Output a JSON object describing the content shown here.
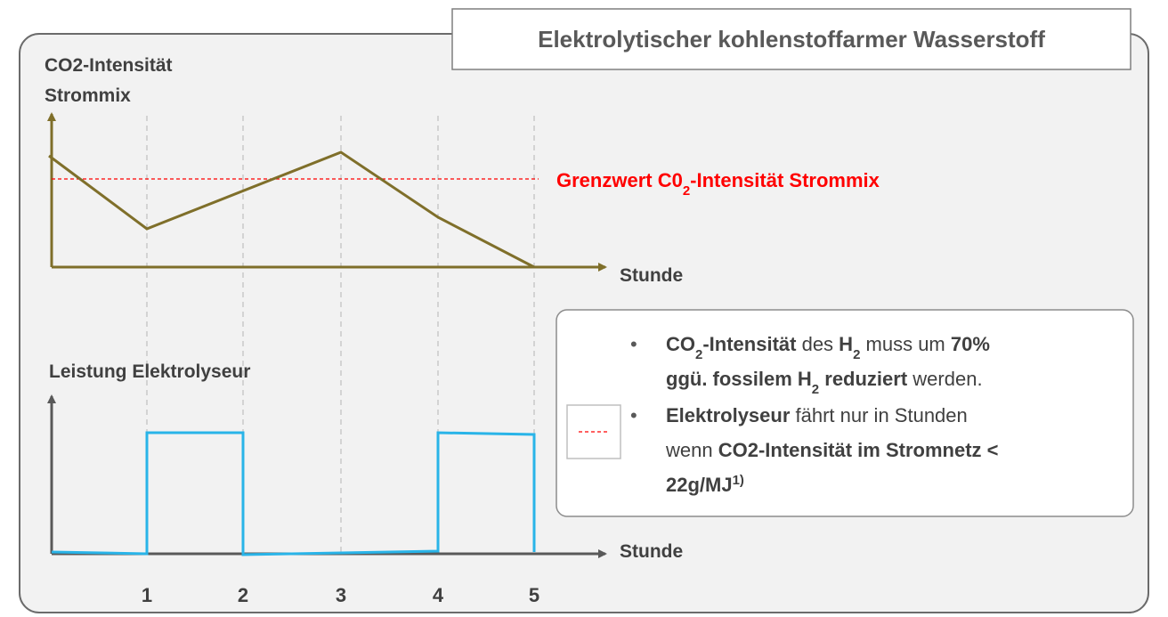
{
  "title": "Elektrolytischer kohlenstoffarmer Wasserstoff",
  "top_chart": {
    "y_label": [
      "CO2-Intensität",
      "Strommix"
    ],
    "x_label": "Stunde",
    "threshold_label": [
      {
        "text": "Grenzwert C0",
        "style": "b"
      },
      {
        "text": "2",
        "style": "bsub"
      },
      {
        "text": "-Intensität Strommix",
        "style": "b"
      }
    ]
  },
  "bottom_chart": {
    "y_label": "Leistung Elektrolyseur",
    "x_label": "Stunde",
    "hours": [
      "1",
      "2",
      "3",
      "4",
      "5"
    ]
  },
  "info": {
    "bullets": [
      {
        "lines": [
          [
            {
              "text": "CO",
              "style": "b"
            },
            {
              "text": "2",
              "style": "bsub"
            },
            {
              "text": "-Intensität",
              "style": "b"
            },
            {
              "text": " des ",
              "style": "n"
            },
            {
              "text": "H",
              "style": "b"
            },
            {
              "text": "2",
              "style": "bsub"
            },
            {
              "text": " muss um ",
              "style": "n"
            },
            {
              "text": "70%",
              "style": "b"
            }
          ],
          [
            {
              "text": "ggü. fossilem H",
              "style": "b"
            },
            {
              "text": "2",
              "style": "bsub"
            },
            {
              "text": " reduziert",
              "style": "b"
            },
            {
              "text": " werden.",
              "style": "n"
            }
          ]
        ]
      },
      {
        "lines": [
          [
            {
              "text": "Elektrolyseur",
              "style": "b"
            },
            {
              "text": " fährt nur in Stunden",
              "style": "n"
            }
          ],
          [
            {
              "text": "wenn ",
              "style": "n"
            },
            {
              "text": "CO2-Intensität im Stromnetz <",
              "style": "b"
            }
          ],
          [
            {
              "text": "22g/MJ",
              "style": "b"
            },
            {
              "text": "1)",
              "style": "bsup"
            }
          ]
        ]
      }
    ]
  }
}
